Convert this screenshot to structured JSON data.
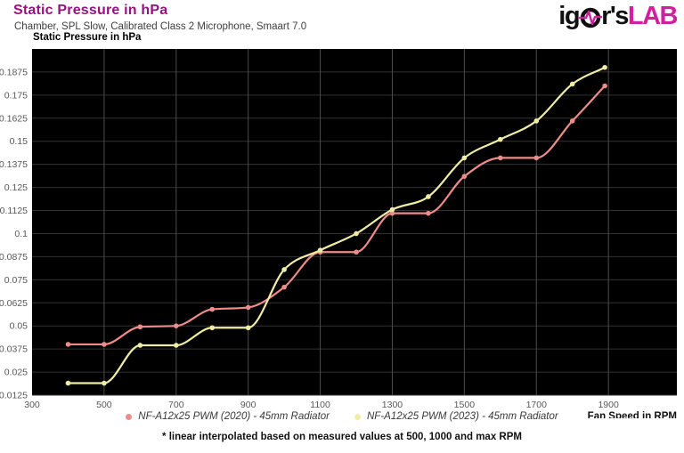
{
  "header": {
    "title": "Static Pressure in hPa",
    "subtitle": "Chamber, SPL Slow, Calibrated Class 2 Microphone, Smaart 7.0",
    "logo": {
      "prefix": "ig",
      "middle": "r's",
      "suffix": "LAB",
      "text_color": "#111111",
      "accent_color": "#d11f9f"
    }
  },
  "chart_data": {
    "type": "line",
    "title": "Static Pressure in hPa",
    "ylabel": "Static Pressure in hPa",
    "xlabel": "Fan Speed in RPM",
    "xlim": [
      300,
      2090
    ],
    "ylim": [
      0.0125,
      0.2
    ],
    "x_ticks": [
      300,
      500,
      700,
      900,
      1100,
      1300,
      1500,
      1700,
      1900
    ],
    "y_ticks": [
      0.0125,
      0.025,
      0.0375,
      0.05,
      0.0625,
      0.075,
      0.0875,
      0.1,
      0.1125,
      0.125,
      0.1375,
      0.15,
      0.1625,
      0.175,
      0.1875
    ],
    "y_tick_labels": [
      "0.0125",
      "0.025",
      "0.0375",
      "0.05",
      "0.0625",
      "0.075",
      "0.0875",
      "0.1",
      "0.1125",
      "0.125",
      "0.1375",
      "0.15",
      "0.1625",
      "0.175",
      "0.1875"
    ],
    "grid": true,
    "plot_bg": "#000000",
    "grid_h_color": "#323232",
    "grid_v_color": "#4d4d4d",
    "tick_label_color": "#585858",
    "legend_position": "bottom",
    "series": [
      {
        "name": "NF-A12x25 PWM (2020) - 45mm Radiator",
        "color": "#ed8c88",
        "x": [
          400,
          500,
          600,
          700,
          800,
          900,
          1000,
          1100,
          1200,
          1300,
          1400,
          1500,
          1600,
          1700,
          1800,
          1890
        ],
        "y": [
          0.04,
          0.04,
          0.0495,
          0.05,
          0.059,
          0.06,
          0.071,
          0.09,
          0.09,
          0.111,
          0.111,
          0.131,
          0.141,
          0.141,
          0.161,
          0.18
        ]
      },
      {
        "name": "NF-A12x25 PWM (2023) - 45mm Radiator",
        "color": "#f0eca4",
        "x": [
          400,
          500,
          600,
          700,
          800,
          900,
          1000,
          1100,
          1200,
          1300,
          1400,
          1500,
          1600,
          1700,
          1800,
          1890
        ],
        "y": [
          0.019,
          0.019,
          0.0395,
          0.0395,
          0.049,
          0.049,
          0.0805,
          0.091,
          0.1,
          0.113,
          0.12,
          0.141,
          0.151,
          0.161,
          0.181,
          0.19
        ]
      }
    ]
  },
  "legend": {
    "items": [
      {
        "label": "NF-A12x25 PWM (2020) - 45mm Radiator",
        "color": "#ed8c88"
      },
      {
        "label": "NF-A12x25 PWM (2023) - 45mm Radiator",
        "color": "#f0eca4"
      }
    ]
  },
  "footnote": "* linear interpolated based on measured values at 500, 1000 and max RPM"
}
